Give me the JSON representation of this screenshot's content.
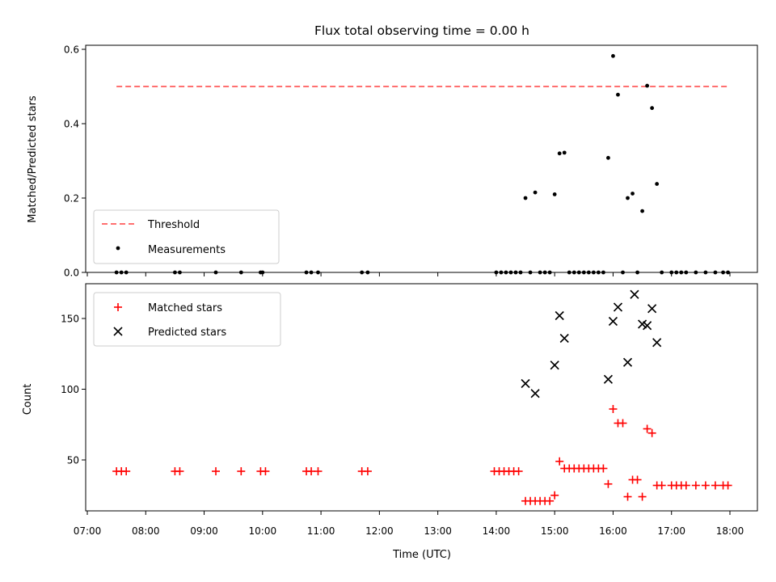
{
  "chart_data": [
    {
      "type": "scatter",
      "title": "Flux total observing time = 0.00 h",
      "xlabel": "",
      "ylabel": "Matched/Predicted stars",
      "ylim": [
        0,
        0.6
      ],
      "yticks": [
        "0.0",
        "0.2",
        "0.4",
        "0.6"
      ],
      "xlim": [
        "07:00",
        "18:30"
      ],
      "grid": false,
      "legend_position": "lower-left",
      "threshold": {
        "name": "Threshold",
        "value": 0.5,
        "x_start": "07:30",
        "x_end": "17:58",
        "color": "#ff7070"
      },
      "series": [
        {
          "name": "Measurements",
          "color": "#000000",
          "points": [
            [
              "07:30",
              0
            ],
            [
              "07:35",
              0
            ],
            [
              "07:40",
              0
            ],
            [
              "08:30",
              0
            ],
            [
              "08:35",
              0
            ],
            [
              "09:12",
              0
            ],
            [
              "09:38",
              0
            ],
            [
              "09:58",
              0
            ],
            [
              "10:00",
              0
            ],
            [
              "10:45",
              0
            ],
            [
              "10:50",
              0
            ],
            [
              "10:57",
              0
            ],
            [
              "11:42",
              0
            ],
            [
              "11:48",
              0
            ],
            [
              "14:00",
              0
            ],
            [
              "14:05",
              0
            ],
            [
              "14:10",
              0
            ],
            [
              "14:15",
              0
            ],
            [
              "14:20",
              0
            ],
            [
              "14:25",
              0
            ],
            [
              "14:30",
              0.2
            ],
            [
              "14:35",
              0
            ],
            [
              "14:40",
              0.215
            ],
            [
              "14:45",
              0
            ],
            [
              "14:50",
              0
            ],
            [
              "14:55",
              0
            ],
            [
              "15:00",
              0.21
            ],
            [
              "15:05",
              0.32
            ],
            [
              "15:10",
              0.322
            ],
            [
              "15:15",
              0
            ],
            [
              "15:20",
              0
            ],
            [
              "15:25",
              0
            ],
            [
              "15:30",
              0
            ],
            [
              "15:35",
              0
            ],
            [
              "15:40",
              0
            ],
            [
              "15:45",
              0
            ],
            [
              "15:50",
              0
            ],
            [
              "15:55",
              0.308
            ],
            [
              "16:00",
              0.582
            ],
            [
              "16:05",
              0.478
            ],
            [
              "16:10",
              0
            ],
            [
              "16:15",
              0.2
            ],
            [
              "16:20",
              0.212
            ],
            [
              "16:25",
              0
            ],
            [
              "16:30",
              0.165
            ],
            [
              "16:35",
              0.502
            ],
            [
              "16:40",
              0.442
            ],
            [
              "16:45",
              0.238
            ],
            [
              "16:50",
              0
            ],
            [
              "17:00",
              0
            ],
            [
              "17:05",
              0
            ],
            [
              "17:10",
              0
            ],
            [
              "17:15",
              0
            ],
            [
              "17:25",
              0
            ],
            [
              "17:35",
              0
            ],
            [
              "17:45",
              0
            ],
            [
              "17:53",
              0
            ],
            [
              "17:58",
              0
            ]
          ]
        }
      ]
    },
    {
      "type": "scatter",
      "title": "",
      "xlabel": "Time (UTC)",
      "ylabel": "Count",
      "ylim": [
        15,
        175
      ],
      "yticks": [
        "50",
        "100",
        "150"
      ],
      "xlim": [
        "07:00",
        "18:30"
      ],
      "xticks": [
        "07:00",
        "08:00",
        "09:00",
        "10:00",
        "11:00",
        "12:00",
        "13:00",
        "14:00",
        "15:00",
        "16:00",
        "17:00",
        "18:00"
      ],
      "grid": false,
      "legend_position": "upper-left",
      "series": [
        {
          "name": "Matched stars",
          "color": "#ff0000",
          "marker": "plus",
          "points": [
            [
              "07:30",
              42
            ],
            [
              "07:35",
              42
            ],
            [
              "07:40",
              42
            ],
            [
              "08:30",
              42
            ],
            [
              "08:35",
              42
            ],
            [
              "09:12",
              42
            ],
            [
              "09:38",
              42
            ],
            [
              "09:58",
              42
            ],
            [
              "10:03",
              42
            ],
            [
              "10:45",
              42
            ],
            [
              "10:50",
              42
            ],
            [
              "10:57",
              42
            ],
            [
              "11:42",
              42
            ],
            [
              "11:48",
              42
            ],
            [
              "13:58",
              42
            ],
            [
              "14:03",
              42
            ],
            [
              "14:08",
              42
            ],
            [
              "14:13",
              42
            ],
            [
              "14:18",
              42
            ],
            [
              "14:23",
              42
            ],
            [
              "14:30",
              21
            ],
            [
              "14:35",
              21
            ],
            [
              "14:40",
              21
            ],
            [
              "14:45",
              21
            ],
            [
              "14:50",
              21
            ],
            [
              "14:55",
              21
            ],
            [
              "15:00",
              25
            ],
            [
              "15:05",
              49
            ],
            [
              "15:10",
              44
            ],
            [
              "15:15",
              44
            ],
            [
              "15:20",
              44
            ],
            [
              "15:25",
              44
            ],
            [
              "15:30",
              44
            ],
            [
              "15:35",
              44
            ],
            [
              "15:40",
              44
            ],
            [
              "15:45",
              44
            ],
            [
              "15:50",
              44
            ],
            [
              "15:55",
              33
            ],
            [
              "16:00",
              86
            ],
            [
              "16:05",
              76
            ],
            [
              "16:10",
              76
            ],
            [
              "16:15",
              24
            ],
            [
              "16:20",
              36
            ],
            [
              "16:25",
              36
            ],
            [
              "16:30",
              24
            ],
            [
              "16:35",
              72
            ],
            [
              "16:40",
              69
            ],
            [
              "16:45",
              32
            ],
            [
              "16:50",
              32
            ],
            [
              "17:00",
              32
            ],
            [
              "17:05",
              32
            ],
            [
              "17:10",
              32
            ],
            [
              "17:15",
              32
            ],
            [
              "17:25",
              32
            ],
            [
              "17:35",
              32
            ],
            [
              "17:45",
              32
            ],
            [
              "17:53",
              32
            ],
            [
              "17:58",
              32
            ]
          ]
        },
        {
          "name": "Predicted stars",
          "color": "#000000",
          "marker": "x",
          "points": [
            [
              "14:30",
              104
            ],
            [
              "14:40",
              97
            ],
            [
              "15:00",
              117
            ],
            [
              "15:05",
              152
            ],
            [
              "15:10",
              136
            ],
            [
              "15:55",
              107
            ],
            [
              "16:00",
              148
            ],
            [
              "16:05",
              158
            ],
            [
              "16:15",
              119
            ],
            [
              "16:22",
              167
            ],
            [
              "16:30",
              146
            ],
            [
              "16:35",
              145
            ],
            [
              "16:40",
              157
            ],
            [
              "16:45",
              133
            ]
          ]
        }
      ]
    }
  ]
}
